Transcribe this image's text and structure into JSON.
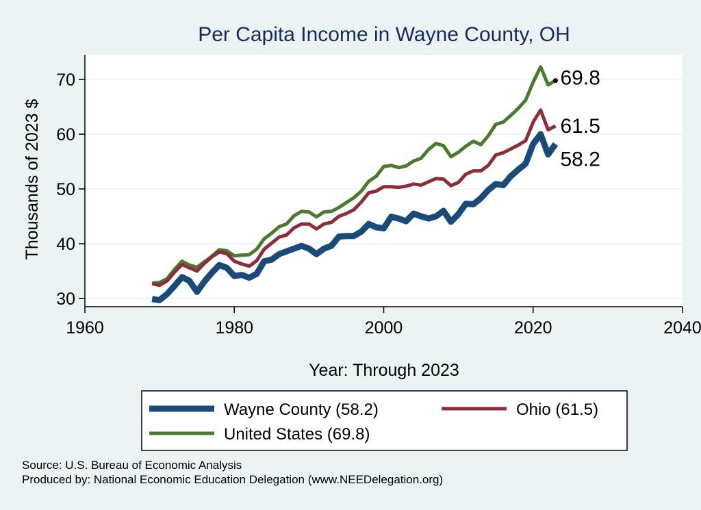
{
  "chart_data": {
    "type": "line",
    "title": "Per Capita Income in Wayne County, OH",
    "xlabel": "Year: Through 2023",
    "ylabel": "Thousands of 2023 $",
    "xlim": [
      1960,
      2040
    ],
    "ylim": [
      28.5,
      74.5
    ],
    "xticks": [
      1960,
      1980,
      2000,
      2020,
      2040
    ],
    "yticks": [
      30,
      40,
      50,
      60,
      70
    ],
    "grid": true,
    "legend_position": "bottom",
    "x": [
      1969,
      1970,
      1971,
      1972,
      1973,
      1974,
      1975,
      1976,
      1977,
      1978,
      1979,
      1980,
      1981,
      1982,
      1983,
      1984,
      1985,
      1986,
      1987,
      1988,
      1989,
      1990,
      1991,
      1992,
      1993,
      1994,
      1995,
      1996,
      1997,
      1998,
      1999,
      2000,
      2001,
      2002,
      2003,
      2004,
      2005,
      2006,
      2007,
      2008,
      2009,
      2010,
      2011,
      2012,
      2013,
      2014,
      2015,
      2016,
      2017,
      2018,
      2019,
      2020,
      2021,
      2022,
      2023
    ],
    "series": [
      {
        "name": "Wayne County (58.2)",
        "color": "#1a4a78",
        "end_label": "58.2",
        "values": [
          29.9,
          29.7,
          30.8,
          32.3,
          33.9,
          33.2,
          31.2,
          33.1,
          34.7,
          36.1,
          35.6,
          34.1,
          34.3,
          33.8,
          34.5,
          36.8,
          37.1,
          38.1,
          38.6,
          39.1,
          39.6,
          39.1,
          38.1,
          39.1,
          39.6,
          41.3,
          41.4,
          41.4,
          42.2,
          43.6,
          43.0,
          42.8,
          44.9,
          44.6,
          44.1,
          45.5,
          45.0,
          44.6,
          45.0,
          46.0,
          44.0,
          45.4,
          47.3,
          47.2,
          48.3,
          49.8,
          50.9,
          50.7,
          52.3,
          53.5,
          54.6,
          58.2,
          60.0,
          56.3,
          58.2
        ]
      },
      {
        "name": "Ohio (61.5)",
        "color": "#8b2e3a",
        "end_label": "61.5",
        "values": [
          32.7,
          32.4,
          33.2,
          34.8,
          36.2,
          35.6,
          35.0,
          36.4,
          37.6,
          38.5,
          38.2,
          36.8,
          36.3,
          35.9,
          36.9,
          39.0,
          40.1,
          41.2,
          41.6,
          42.9,
          43.6,
          43.6,
          42.7,
          43.6,
          43.9,
          45.0,
          45.5,
          46.2,
          47.6,
          49.3,
          49.6,
          50.4,
          50.4,
          50.3,
          50.5,
          50.9,
          50.7,
          51.3,
          51.9,
          51.8,
          50.6,
          51.2,
          52.7,
          53.3,
          53.3,
          54.3,
          56.2,
          56.6,
          57.3,
          58.0,
          58.8,
          62.2,
          64.4,
          60.8,
          61.5
        ]
      },
      {
        "name": "United States (69.8)",
        "color": "#4a7a2e",
        "end_label": "69.8",
        "values": [
          32.8,
          32.9,
          33.6,
          35.3,
          36.8,
          36.1,
          35.7,
          36.7,
          37.7,
          38.9,
          38.7,
          37.8,
          37.9,
          38.0,
          39.0,
          40.9,
          41.9,
          43.1,
          43.6,
          45.1,
          45.9,
          45.8,
          44.9,
          45.8,
          45.9,
          46.6,
          47.5,
          48.4,
          49.6,
          51.4,
          52.3,
          54.1,
          54.3,
          53.9,
          54.2,
          55.1,
          55.6,
          57.2,
          58.3,
          57.9,
          55.9,
          56.7,
          57.8,
          58.7,
          58.1,
          59.7,
          61.8,
          62.2,
          63.4,
          64.7,
          66.2,
          69.5,
          72.3,
          69.0,
          69.8
        ]
      }
    ]
  },
  "footer": {
    "source": "Source: U.S. Bureau of Economic Analysis",
    "produced_by": "Produced by: National Economic Education Delegation (www.NEEDelegation.org)"
  }
}
